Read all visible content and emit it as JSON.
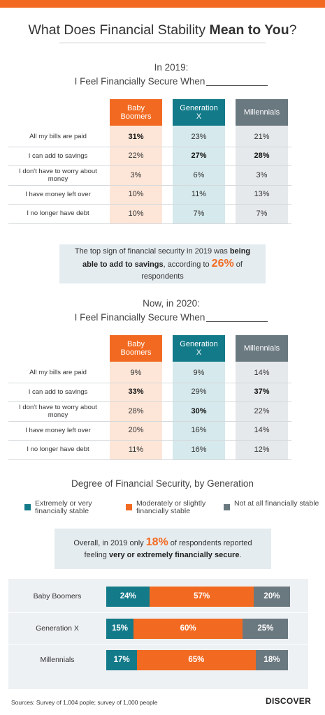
{
  "title": {
    "parts": [
      {
        "text": "What Does Financial Stability ",
        "bold": false
      },
      {
        "text": "Mean to You",
        "bold": true
      },
      {
        "text": "?",
        "bold": false
      }
    ]
  },
  "tables": [
    {
      "heading": [
        "In 2019:",
        "I Feel Financially Secure When"
      ],
      "columns": [
        "Baby Boomers",
        "Generation X",
        "Millennials"
      ],
      "rows": [
        {
          "label": "All my bills are paid",
          "cells": [
            "31%",
            "23%",
            "21%"
          ]
        },
        {
          "label": "I can add to savings",
          "cells": [
            "22%",
            "27%",
            "28%"
          ]
        },
        {
          "label": "I don't have to worry about money",
          "cells": [
            "3%",
            "6%",
            "3%"
          ]
        },
        {
          "label": "I have money left over",
          "cells": [
            "10%",
            "11%",
            "13%"
          ]
        },
        {
          "label": "I no longer have debt",
          "cells": [
            "10%",
            "7%",
            "7%"
          ]
        }
      ],
      "bold_cells": [
        [
          0,
          0
        ],
        [
          1,
          1
        ],
        [
          1,
          2
        ]
      ]
    },
    {
      "heading": [
        "Now, in 2020:",
        "I Feel Financially Secure When"
      ],
      "columns": [
        "Baby Boomers",
        "Generation X",
        "Millennials"
      ],
      "rows": [
        {
          "label": "All my bills are paid",
          "cells": [
            "9%",
            "9%",
            "14%"
          ]
        },
        {
          "label": "I can add to savings",
          "cells": [
            "33%",
            "29%",
            "37%"
          ]
        },
        {
          "label": "I don't have to worry about money",
          "cells": [
            "28%",
            "30%",
            "22%"
          ]
        },
        {
          "label": "I have money left over",
          "cells": [
            "20%",
            "16%",
            "14%"
          ]
        },
        {
          "label": "I no longer have debt",
          "cells": [
            "11%",
            "16%",
            "12%"
          ]
        }
      ],
      "bold_cells": [
        [
          1,
          0
        ],
        [
          2,
          1
        ],
        [
          1,
          2
        ]
      ]
    }
  ],
  "callouts": [
    {
      "parts": [
        {
          "text": "The top sign of financial security in 2019 was ",
          "style": "plain"
        },
        {
          "text": "being able to add to savings",
          "style": "bold"
        },
        {
          "text": ", according to ",
          "style": "plain"
        },
        {
          "text": "26%",
          "style": "highlight"
        },
        {
          "text": " of respondents",
          "style": "plain"
        }
      ]
    },
    {
      "parts": [
        {
          "text": "Overall, in 2019 only ",
          "style": "plain"
        },
        {
          "text": "18%",
          "style": "highlight"
        },
        {
          "text": " of respondents reported feeling ",
          "style": "plain"
        },
        {
          "text": "very or extremely financially secure",
          "style": "bold"
        },
        {
          "text": ".",
          "style": "plain"
        }
      ]
    }
  ],
  "chart_data": {
    "type": "bar",
    "orientation": "horizontal",
    "stacked": true,
    "title": "Degree of Financial Security, by Generation",
    "categories": [
      "Baby Boomers",
      "Generation X",
      "Millennials"
    ],
    "series": [
      {
        "name": "Extremely or very financially stable",
        "color": "#137a89",
        "values": [
          24,
          15,
          17
        ],
        "value_labels": [
          "24%",
          "15%",
          "17%"
        ]
      },
      {
        "name": "Moderately or slightly financially stable",
        "color": "#f26a21",
        "values": [
          57,
          60,
          65
        ],
        "value_labels": [
          "57%",
          "60%",
          "65%"
        ]
      },
      {
        "name": "Not at all financially stable",
        "color": "#6a7880",
        "values": [
          20,
          25,
          18
        ],
        "value_labels": [
          "20%",
          "25%",
          "18%"
        ]
      }
    ]
  },
  "footer": {
    "source": "Sources: Survey of 1,004 pople; survey of 1,000 people",
    "logo": "DISCOVER"
  }
}
